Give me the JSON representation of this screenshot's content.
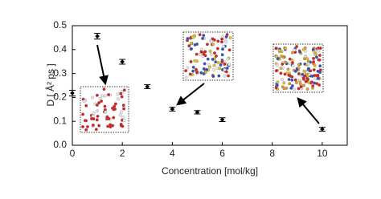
{
  "chart_data": {
    "type": "scatter",
    "x_label": "Concentration [mol/kg]",
    "y_label": "D [ Å² ps ]",
    "x": [
      0,
      1,
      2,
      3,
      4,
      5,
      6,
      10
    ],
    "series": [
      {
        "color": "#000000",
        "values": [
          0.218,
          0.456,
          0.349,
          0.245,
          0.151,
          0.138,
          0.107,
          0.067
        ],
        "errors": [
          0.012,
          0.012,
          0.01,
          0.008,
          0.008,
          0.007,
          0.008,
          0.008
        ]
      }
    ],
    "xlim": [
      0,
      11
    ],
    "xticks": [
      0,
      2,
      4,
      6,
      8,
      10
    ],
    "ylim": [
      0,
      0.5
    ],
    "yticks": [
      {
        "value": 0,
        "label": "0.0"
      },
      0.1,
      0.2,
      0.3,
      0.4,
      0.5
    ]
  }
}
